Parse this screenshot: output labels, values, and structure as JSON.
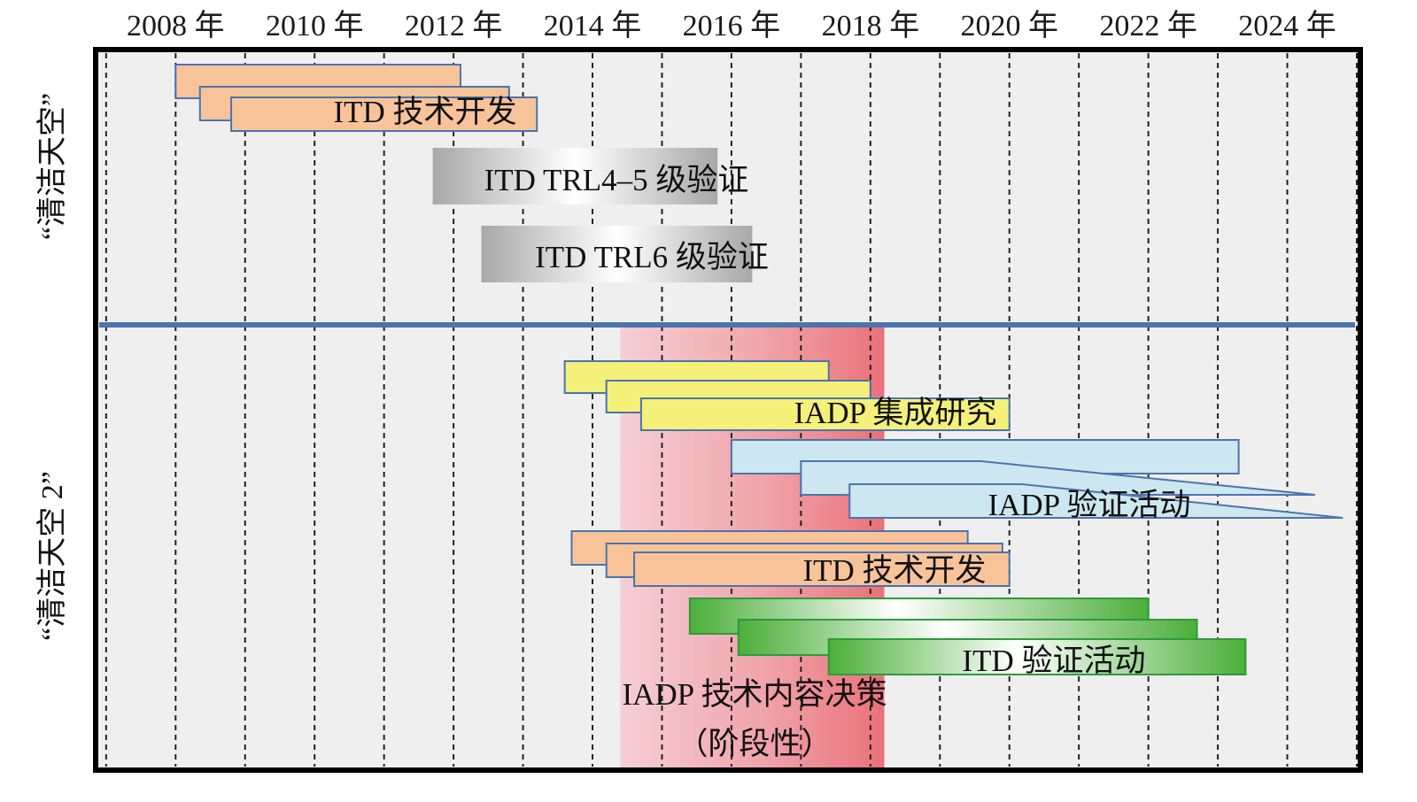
{
  "chart_data": {
    "type": "gantt",
    "title": "",
    "x_axis": {
      "tick_labels": [
        "2008 年",
        "2010 年",
        "2012 年",
        "2014 年",
        "2016 年",
        "2018 年",
        "2020 年",
        "2022 年",
        "2024 年"
      ],
      "tick_years": [
        2008,
        2010,
        2012,
        2014,
        2016,
        2018,
        2020,
        2022,
        2024
      ],
      "range": [
        2006.9,
        2025.0
      ],
      "gridlines_every_year": true
    },
    "sections": [
      {
        "id": "cs1",
        "label": "“清洁天空”",
        "tasks": [
          {
            "name": "ITD 技术开发",
            "style": "orange",
            "bars": [
              [
                2008.0,
                2012.1
              ],
              [
                2008.35,
                2012.8
              ],
              [
                2008.8,
                2013.2
              ]
            ]
          },
          {
            "name": "ITD  TRL4–5  级验证",
            "style": "gray",
            "bars": [
              [
                2011.7,
                2015.8
              ]
            ]
          },
          {
            "name": "ITD  TRL6  级验证",
            "style": "gray",
            "bars": [
              [
                2012.4,
                2016.3
              ]
            ]
          }
        ]
      },
      {
        "id": "cs2",
        "label": "“清洁天空 2”",
        "tasks": [
          {
            "name": "IADP 集成研究",
            "style": "yellow",
            "bars": [
              [
                2013.6,
                2017.4
              ],
              [
                2014.2,
                2018.0
              ],
              [
                2014.7,
                2020.0
              ]
            ]
          },
          {
            "name": "IADP 验证活动",
            "style": "blue",
            "bars": [
              [
                2016.0,
                2023.3
              ],
              [
                2017.0,
                2024.4
              ],
              [
                2017.7,
                2024.8
              ]
            ]
          },
          {
            "name": "ITD 技术开发",
            "style": "orange",
            "bars": [
              [
                2013.7,
                2019.4
              ],
              [
                2014.2,
                2019.9
              ],
              [
                2014.6,
                2020.0
              ]
            ]
          },
          {
            "name": "ITD 验证活动",
            "style": "green",
            "bars": [
              [
                2015.4,
                2022.0
              ],
              [
                2016.1,
                2022.7
              ],
              [
                2017.4,
                2023.4
              ]
            ]
          }
        ]
      }
    ],
    "highlight": {
      "label_line1": "IADP 技术内容决策",
      "label_line2": "（阶段性）",
      "range": [
        2014.4,
        2018.2
      ]
    }
  }
}
